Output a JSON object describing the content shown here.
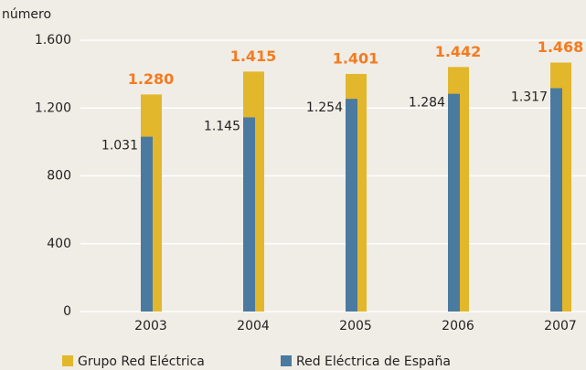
{
  "chart_data": {
    "type": "overlapping_bar",
    "y_axis_label": "número",
    "categories": [
      "2003",
      "2004",
      "2005",
      "2006",
      "2007"
    ],
    "series": [
      {
        "name": "Grupo Red Eléctrica",
        "color": "#e2b72c",
        "values": [
          1280,
          1415,
          1401,
          1442,
          1468
        ],
        "value_labels": [
          "1.280",
          "1.415",
          "1.401",
          "1.442",
          "1.468"
        ],
        "label_color": "#f47b20"
      },
      {
        "name": "Red Eléctrica de España",
        "color": "#4a7aa0",
        "values": [
          1031,
          1145,
          1254,
          1284,
          1317
        ],
        "value_labels": [
          "1.031",
          "1.145",
          "1.254",
          "1.284",
          "1.317"
        ],
        "label_color": "#222222"
      }
    ],
    "ylim": [
      0,
      1600
    ],
    "yticks": [
      0,
      400,
      800,
      {
        "value": 1200,
        "label": "1.200"
      },
      {
        "value": 1600,
        "label": "1.600"
      }
    ],
    "grid": true,
    "legend": "bottom"
  }
}
